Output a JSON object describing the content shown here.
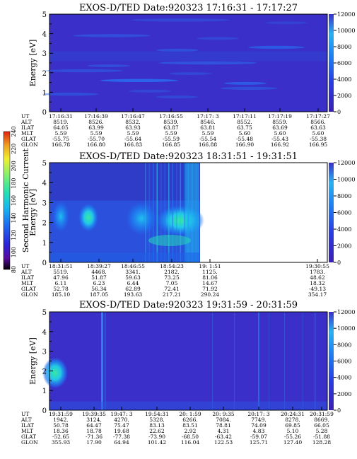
{
  "colors": {
    "background_fill": "#3a2fc8",
    "scale": [
      "#000000",
      "#5a0aa0",
      "#2a23d8",
      "#1f6af0",
      "#19b8f0",
      "#25e0b0",
      "#7ef070",
      "#f0f030",
      "#f0a020",
      "#e02010"
    ]
  },
  "chart_data": [
    {
      "type": "heatmap",
      "title": "EXOS-D/TED   Date:920323  17:16:31 - 17:17:27",
      "ylabel": "Energy [eV]",
      "y2label": "Temperature [K]",
      "ylim": [
        0,
        5
      ],
      "yticks": [
        "0",
        "1",
        "2",
        "3",
        "4",
        "5"
      ],
      "y2ticks": [
        "0",
        "2000",
        "4000",
        "6000",
        "8000",
        "10000",
        "12000"
      ],
      "ephemeris": {
        "row_labels": [
          "UT",
          "ALT",
          "ILAT",
          "MLT",
          "GLAT",
          "GLON"
        ],
        "columns": [
          [
            "17:16:31",
            "8519.",
            "64.05",
            "5.59",
            "-55.75",
            "166.78"
          ],
          [
            "17:16:39",
            "8526.",
            "63.99",
            "5.59",
            "-55.70",
            "166.80"
          ],
          [
            "17:16:47",
            "8532.",
            "63.93",
            "5.59",
            "-55.64",
            "166.83"
          ],
          [
            "17:16:55",
            "8539.",
            "63.87",
            "5.59",
            "-55.59",
            "166.85"
          ],
          [
            "17:17: 3",
            "8546.",
            "63.81",
            "5.59",
            "-55.54",
            "166.88"
          ],
          [
            "17:17:11",
            "8552.",
            "63.75",
            "5.60",
            "-55.48",
            "166.90"
          ],
          [
            "17:17:19",
            "8559.",
            "63.69",
            "5.60",
            "-55.43",
            "166.92"
          ],
          [
            "17:17:27",
            "8566.",
            "63.63",
            "5.60",
            "-55.38",
            "166.95"
          ]
        ]
      }
    },
    {
      "type": "heatmap",
      "title": "EXOS-D/TED   Date:920323  18:31:51 - 19:31:51",
      "ylabel": "Energy [eV]",
      "y2label": "Temperature [K]",
      "ylim": [
        0,
        5
      ],
      "yticks": [
        "0",
        "1",
        "2",
        "3",
        "4",
        "5"
      ],
      "y2ticks": [
        "0",
        "2000",
        "4000",
        "6000",
        "8000",
        "10000",
        "12000"
      ],
      "colorbar": {
        "label": "Second Harmonic Current",
        "ticks": [
          "80",
          "100",
          "120",
          "140",
          "160",
          "180",
          "200",
          "220",
          "240"
        ]
      },
      "ephemeris": {
        "row_labels": [
          "UT",
          "ALT",
          "ILAT",
          "MLT",
          "GLAT",
          "GLON"
        ],
        "columns": [
          [
            "18:31:51",
            "5519.",
            "47.96",
            "6.11",
            "52.78",
            "185.10"
          ],
          [
            "18:39:27",
            "4468.",
            "51.87",
            "6.23",
            "56.34",
            "187.05"
          ],
          [
            "18:46:55",
            "3341.",
            "59.63",
            "6.44",
            "62.89",
            "193.63"
          ],
          [
            "18:54:23",
            "2182.",
            "73.25",
            "7.05",
            "72.41",
            "217.21"
          ],
          [
            "19: 1:51",
            "1125.",
            "81.06",
            "14.67",
            "71.92",
            "290.24"
          ],
          [
            "19:30:55",
            "1783.",
            "48.62",
            "18.32",
            "-49.13",
            "354.17"
          ]
        ]
      }
    },
    {
      "type": "heatmap",
      "title": "EXOS-D/TED   Date:920323  19:31:59 - 20:31:59",
      "ylabel": "Energy [eV]",
      "y2label": "Temperature [K]",
      "ylim": [
        0,
        5
      ],
      "yticks": [
        "0",
        "1",
        "2",
        "3",
        "4",
        "5"
      ],
      "y2ticks": [
        "0",
        "2000",
        "4000",
        "6000",
        "8000",
        "10000",
        "12000"
      ],
      "ephemeris": {
        "row_labels": [
          "UT",
          "ALT",
          "ILAT",
          "MLT",
          "GLAT",
          "GLON"
        ],
        "columns": [
          [
            "19:31:59",
            "1942.",
            "50.78",
            "18.36",
            "-52.65",
            "355.93"
          ],
          [
            "19:39:35",
            "3124.",
            "64.47",
            "18.78",
            "-71.36",
            "17.90"
          ],
          [
            "19:47: 3",
            "4270.",
            "75.47",
            "19.68",
            "-77.38",
            "64.94"
          ],
          [
            "19:54:31",
            "5328.",
            "83.13",
            "22.62",
            "-73.90",
            "101.42"
          ],
          [
            "20: 1:59",
            "6266.",
            "83.51",
            "2.92",
            "-68.50",
            "116.04"
          ],
          [
            "20: 9:35",
            "7084.",
            "78.81",
            "4.31",
            "-63.42",
            "122.53"
          ],
          [
            "20:17: 3",
            "7749.",
            "74.09",
            "4.83",
            "-59.07",
            "125.71"
          ],
          [
            "20:24:31",
            "8278.",
            "69.85",
            "5.10",
            "-55.26",
            "127.40"
          ],
          [
            "20:31:59",
            "8669.",
            "66.05",
            "5.28",
            "-51.88",
            "128.28"
          ]
        ]
      }
    }
  ]
}
